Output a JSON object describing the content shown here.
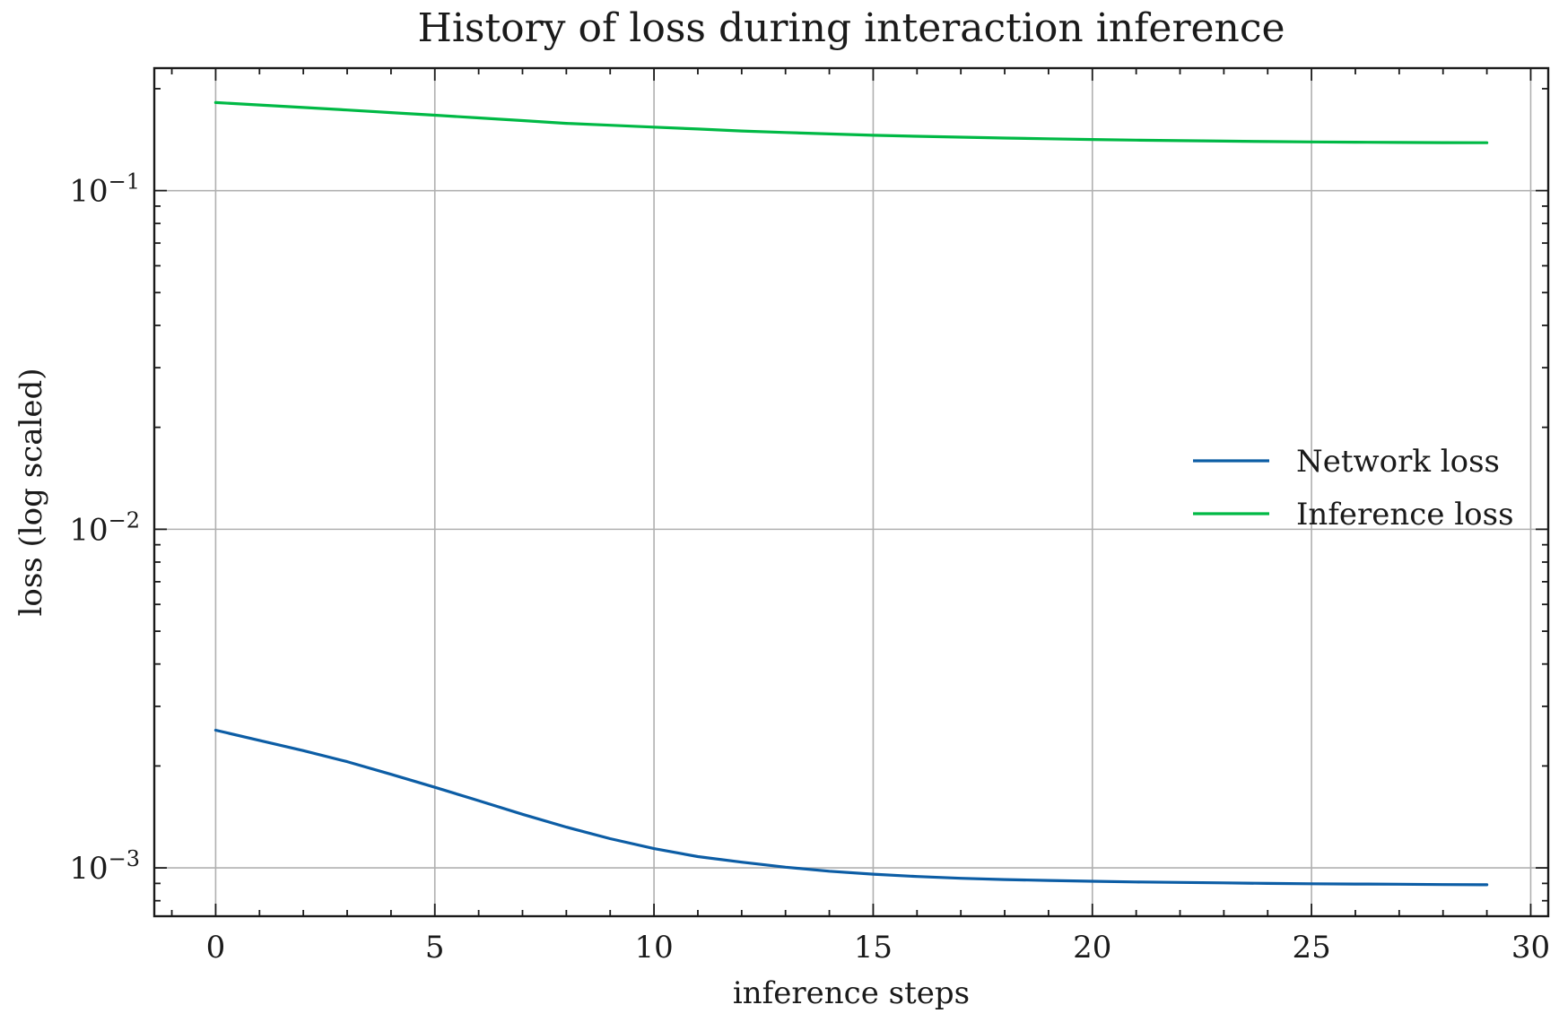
{
  "chart_data": {
    "type": "line",
    "title": "History of loss during interaction inference",
    "xlabel": "inference steps",
    "ylabel": "loss (log scaled)",
    "x": [
      0,
      1,
      2,
      3,
      4,
      5,
      6,
      7,
      8,
      9,
      10,
      11,
      12,
      13,
      14,
      15,
      16,
      17,
      18,
      19,
      20,
      21,
      22,
      23,
      24,
      25,
      26,
      27,
      28,
      29
    ],
    "xlim": [
      -1.4,
      30.4
    ],
    "ylim": [
      0.00072,
      0.23
    ],
    "yscale": "log",
    "x_ticks": [
      0,
      5,
      10,
      15,
      20,
      25,
      30
    ],
    "y_ticks": [
      {
        "value": 0.1,
        "base": "10",
        "exp": "−1"
      },
      {
        "value": 0.01,
        "base": "10",
        "exp": "−2"
      },
      {
        "value": 0.001,
        "base": "10",
        "exp": "−3"
      }
    ],
    "grid": true,
    "legend_position": "center-right",
    "series": [
      {
        "name": "Network loss",
        "color": "#0C5DA5",
        "values": [
          0.00255,
          0.00238,
          0.00222,
          0.00206,
          0.00189,
          0.00173,
          0.00158,
          0.00144,
          0.00132,
          0.00122,
          0.00114,
          0.00108,
          0.00104,
          0.001005,
          0.000978,
          0.000958,
          0.000943,
          0.000932,
          0.000924,
          0.000918,
          0.000913,
          0.000909,
          0.000906,
          0.000903,
          0.0009,
          0.000898,
          0.000896,
          0.000895,
          0.000893,
          0.000892
        ]
      },
      {
        "name": "Inference loss",
        "color": "#00B945",
        "values": [
          0.182,
          0.179,
          0.176,
          0.173,
          0.17,
          0.167,
          0.164,
          0.161,
          0.158,
          0.156,
          0.154,
          0.152,
          0.15,
          0.1485,
          0.147,
          0.1457,
          0.1447,
          0.1438,
          0.143,
          0.1423,
          0.1416,
          0.141,
          0.1405,
          0.14,
          0.1396,
          0.1393,
          0.139,
          0.1388,
          0.1386,
          0.1385
        ]
      }
    ]
  }
}
